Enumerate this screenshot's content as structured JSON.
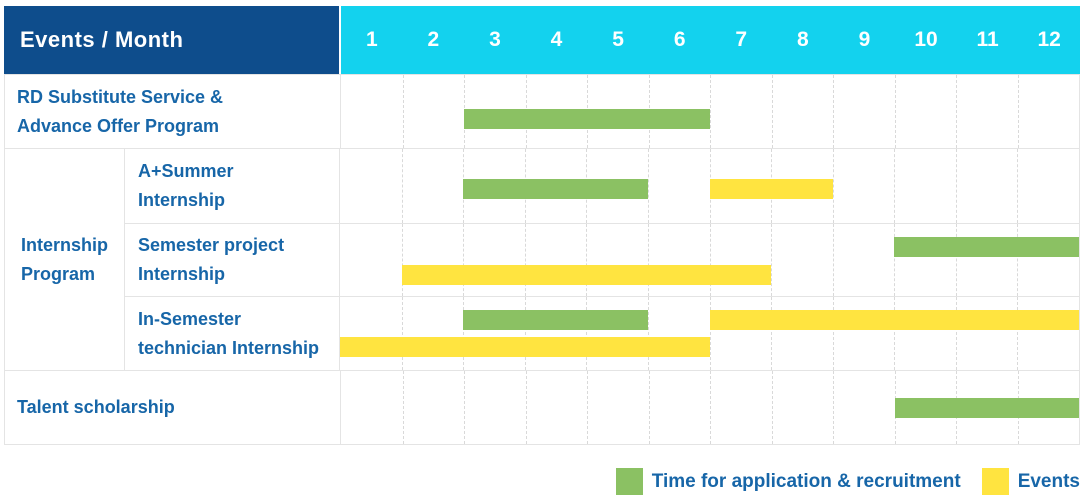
{
  "colors": {
    "header_bg": "#0E4D8C",
    "month_header_bg": "#13D2EE",
    "bar_green": "#8BC163",
    "bar_yellow": "#FFE440",
    "label_text": "#1766A8",
    "grid_line": "#E4E4E4"
  },
  "header": {
    "label": "Events / Month",
    "months": [
      "1",
      "2",
      "3",
      "4",
      "5",
      "6",
      "7",
      "8",
      "9",
      "10",
      "11",
      "12"
    ]
  },
  "table": {
    "groups": {
      "internship": {
        "label_lines": [
          "Internship",
          "Program"
        ]
      }
    },
    "rows": [
      {
        "id": "rd-substitute",
        "group_id": null,
        "label_lines": [
          "RD Substitute Service &",
          "Advance Offer Program"
        ],
        "bars": [
          {
            "type": "green",
            "start_month": 3,
            "end_month": 6,
            "line": 0
          }
        ]
      },
      {
        "id": "aplus-summer",
        "group_id": "internship",
        "label_lines": [
          "A+Summer",
          "Internship"
        ],
        "bars": [
          {
            "type": "green",
            "start_month": 3,
            "end_month": 5,
            "line": 0
          },
          {
            "type": "yellow",
            "start_month": 7,
            "end_month": 8,
            "line": 0
          }
        ]
      },
      {
        "id": "semester-project",
        "group_id": "internship",
        "label_lines": [
          "Semester project",
          "Internship"
        ],
        "bars": [
          {
            "type": "green",
            "start_month": 10,
            "end_month": 12,
            "line": 0
          },
          {
            "type": "yellow",
            "start_month": 2,
            "end_month": 7,
            "line": 1
          }
        ]
      },
      {
        "id": "in-semester",
        "group_id": "internship",
        "label_lines": [
          "In-Semester",
          "technician Internship"
        ],
        "bars": [
          {
            "type": "green",
            "start_month": 3,
            "end_month": 5,
            "line": 0
          },
          {
            "type": "yellow",
            "start_month": 7,
            "end_month": 12,
            "line": 0
          },
          {
            "type": "yellow",
            "start_month": 1,
            "end_month": 6,
            "line": 1
          }
        ]
      },
      {
        "id": "talent-scholarship",
        "group_id": null,
        "label_lines": [
          "Talent scholarship"
        ],
        "bars": [
          {
            "type": "green",
            "start_month": 10,
            "end_month": 12,
            "line": 0
          }
        ]
      }
    ]
  },
  "legend": {
    "items": [
      {
        "key": "green",
        "label": "Time for application & recruitment"
      },
      {
        "key": "yellow",
        "label": "Events"
      }
    ]
  },
  "chart_data": {
    "type": "bar",
    "subtype": "gantt",
    "title": "Events / Month",
    "x": {
      "label": "Month",
      "ticks": [
        1,
        2,
        3,
        4,
        5,
        6,
        7,
        8,
        9,
        10,
        11,
        12
      ],
      "range": [
        1,
        12
      ]
    },
    "grid": true,
    "legend_position": "bottom-right",
    "series_legend": [
      "Time for application & recruitment",
      "Events"
    ],
    "rows": [
      {
        "category": "RD Substitute Service & Advance Offer Program",
        "group": null,
        "spans": [
          {
            "series": "Time for application & recruitment",
            "start_month": 3,
            "end_month": 6
          }
        ]
      },
      {
        "category": "A+Summer Internship",
        "group": "Internship Program",
        "spans": [
          {
            "series": "Time for application & recruitment",
            "start_month": 3,
            "end_month": 5
          },
          {
            "series": "Events",
            "start_month": 7,
            "end_month": 8
          }
        ]
      },
      {
        "category": "Semester project Internship",
        "group": "Internship Program",
        "spans": [
          {
            "series": "Time for application & recruitment",
            "start_month": 10,
            "end_month": 12
          },
          {
            "series": "Events",
            "start_month": 2,
            "end_month": 7
          }
        ]
      },
      {
        "category": "In-Semester technician Internship",
        "group": "Internship Program",
        "spans": [
          {
            "series": "Time for application & recruitment",
            "start_month": 3,
            "end_month": 5
          },
          {
            "series": "Events",
            "start_month": 7,
            "end_month": 12
          },
          {
            "series": "Events",
            "start_month": 1,
            "end_month": 6
          }
        ]
      },
      {
        "category": "Talent scholarship",
        "group": null,
        "spans": [
          {
            "series": "Time for application & recruitment",
            "start_month": 10,
            "end_month": 12
          }
        ]
      }
    ]
  }
}
